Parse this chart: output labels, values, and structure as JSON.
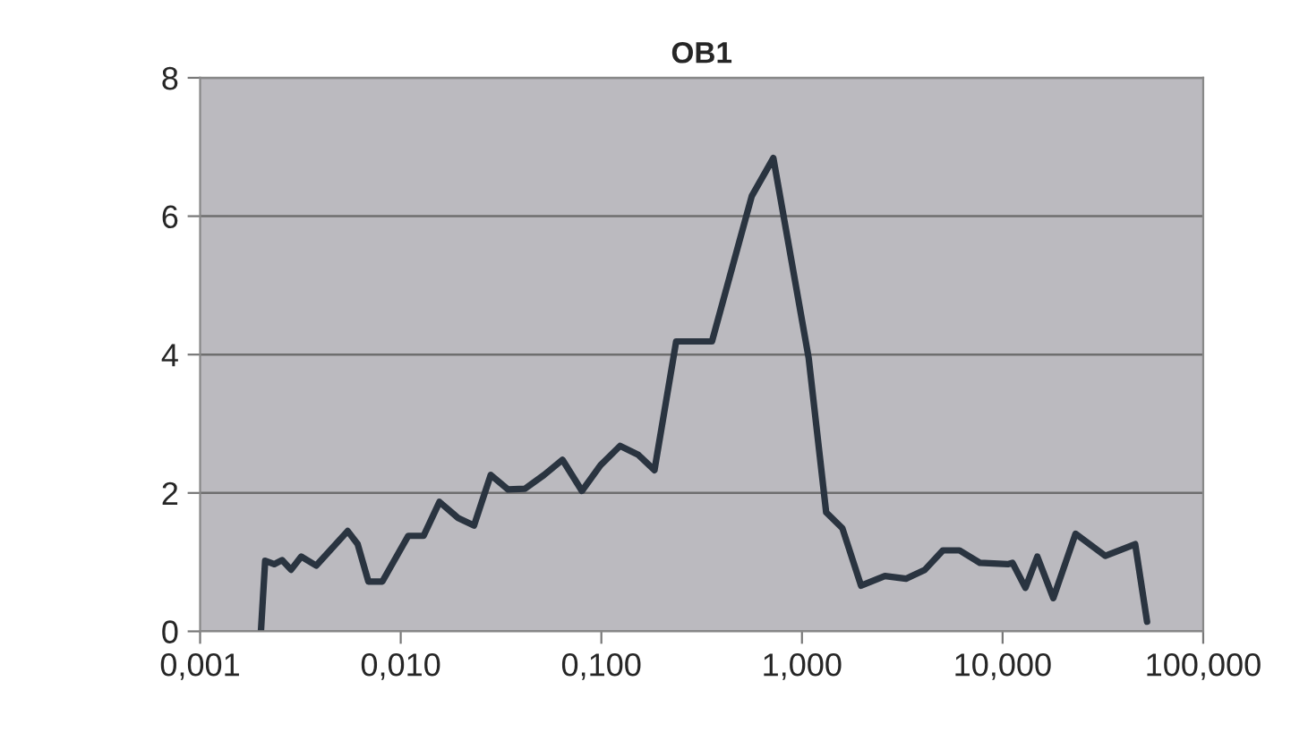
{
  "chart_data": {
    "type": "line",
    "title": "OB1",
    "log": "x",
    "grid": "y",
    "marker": "none",
    "line_style": "solid",
    "xlim": [
      0.001,
      100
    ],
    "xticks": [
      {
        "value": 0.001,
        "label": "0,001"
      },
      {
        "value": 0.01,
        "label": "0,010"
      },
      {
        "value": 0.1,
        "label": "0,100"
      },
      {
        "value": 1,
        "label": "1,000"
      },
      {
        "value": 10,
        "label": "10,000"
      },
      {
        "value": 100,
        "label": "100,000"
      }
    ],
    "ylim": [
      0,
      8
    ],
    "yticks": [
      0,
      2,
      4,
      6,
      8
    ],
    "series": [
      {
        "color": "#2a3440",
        "x": [
          0.00201,
          0.00211,
          0.00234,
          0.00256,
          0.00284,
          0.00319,
          0.00379,
          0.00544,
          0.0061,
          0.0069,
          0.0081,
          0.0109,
          0.013,
          0.0156,
          0.0193,
          0.0232,
          0.0281,
          0.0343,
          0.0416,
          0.0518,
          0.064,
          0.08,
          0.099,
          0.124,
          0.153,
          0.184,
          0.236,
          0.356,
          0.562,
          0.72,
          1.08,
          1.32,
          1.59,
          1.97,
          2.59,
          3.3,
          4.1,
          5.04,
          6.1,
          7.7,
          10.6,
          11.2,
          13.0,
          14.9,
          17.9,
          23.1,
          32.5,
          45.8,
          52.5
        ],
        "values": [
          0,
          1.02,
          0.97,
          1.03,
          0.89,
          1.08,
          0.95,
          1.45,
          1.26,
          0.72,
          0.72,
          1.38,
          1.38,
          1.87,
          1.64,
          1.53,
          2.26,
          2.05,
          2.06,
          2.26,
          2.48,
          2.03,
          2.4,
          2.68,
          2.55,
          2.33,
          4.19,
          4.19,
          6.29,
          6.84,
          3.95,
          1.72,
          1.49,
          0.66,
          0.8,
          0.76,
          0.89,
          1.17,
          1.17,
          0.99,
          0.97,
          0.99,
          0.63,
          1.08,
          0.48,
          1.41,
          1.09,
          1.26,
          0.14
        ]
      }
    ]
  }
}
